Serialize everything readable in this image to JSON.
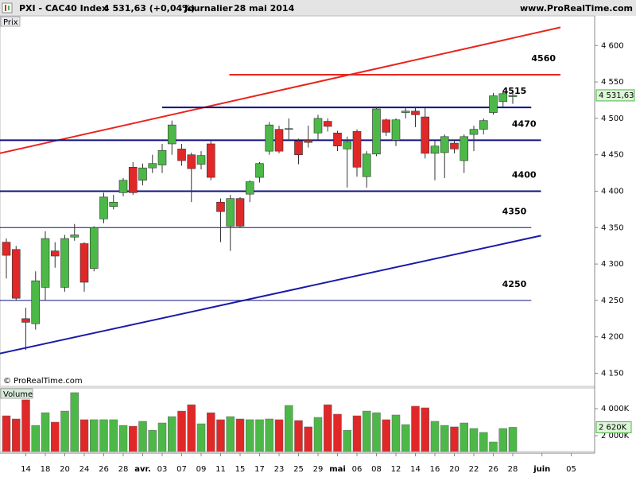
{
  "chart_data": {
    "type": "candlestick",
    "title": "PXI - CAC40 Index",
    "price_summary": "4 531,63 (+0,04%)",
    "period": "Journalier",
    "date": "28 mai 2014",
    "website": "www.ProRealTime.com",
    "price_panel_label": "Prix",
    "volume_panel_label": "Volume",
    "copyright": "© ProRealTime.com",
    "last_price_label": "4 531,63",
    "last_volume_label": "2 620K",
    "up_color": "#4cb848",
    "down_color": "#e02828",
    "categories": [
      null,
      null,
      "14",
      null,
      "18",
      null,
      "20",
      null,
      "24",
      null,
      "26",
      null,
      "28",
      null,
      "avr.",
      null,
      "03",
      null,
      "07",
      null,
      "09",
      null,
      "11",
      null,
      "15",
      null,
      "17",
      null,
      "23",
      null,
      "25",
      null,
      "29",
      null,
      "mai",
      null,
      "06",
      null,
      "08",
      null,
      "12",
      null,
      "14",
      null,
      "16",
      null,
      "20",
      null,
      "22",
      null,
      "26",
      null,
      "28",
      null,
      null,
      "juin",
      null,
      null,
      "05"
    ],
    "open": [
      4330,
      4320,
      4225,
      4218,
      4268,
      4318,
      4268,
      4337,
      4328,
      4294,
      4362,
      4379,
      4398,
      4433,
      4415,
      4432,
      4436,
      4465,
      4458,
      4450,
      4437,
      4465,
      4385,
      4352,
      4390,
      4396,
      4419,
      4455,
      4485,
      4485,
      4469,
      4470,
      4480,
      4496,
      4480,
      4458,
      4482,
      4420,
      4451,
      4498,
      4470,
      4508,
      4510,
      4502,
      4452,
      4453,
      4466,
      4442,
      4478,
      4485,
      4508,
      4523,
      4529.9,
      null,
      null,
      null,
      null,
      null,
      null
    ],
    "high": [
      4335,
      4325,
      4240,
      4290,
      4345,
      4330,
      4340,
      4355,
      4330,
      4352,
      4398,
      4395,
      4418,
      4440,
      4438,
      4450,
      4465,
      4497,
      4465,
      4453,
      4455,
      4470,
      4390,
      4395,
      4392,
      4415,
      4440,
      4495,
      4490,
      4500,
      4472,
      4490,
      4505,
      4500,
      4483,
      4475,
      4485,
      4455,
      4515,
      4500,
      4500,
      4515,
      4515,
      4515,
      4470,
      4478,
      4470,
      4478,
      4490,
      4500,
      4535,
      4538,
      4536,
      null,
      null,
      null,
      null,
      null,
      null
    ],
    "low": [
      4280,
      4250,
      4182,
      4210,
      4250,
      4295,
      4262,
      4332,
      4262,
      4290,
      4356,
      4375,
      4393,
      4395,
      4408,
      4425,
      4425,
      4450,
      4435,
      4385,
      4430,
      4415,
      4330,
      4318,
      4350,
      4385,
      4412,
      4450,
      4452,
      4470,
      4437,
      4460,
      4470,
      4482,
      4455,
      4405,
      4420,
      4405,
      4448,
      4476,
      4462,
      4500,
      4488,
      4445,
      4415,
      4418,
      4452,
      4425,
      4455,
      4478,
      4505,
      4516,
      4520,
      null,
      null,
      null,
      null,
      null,
      null
    ],
    "close": [
      4312,
      4253,
      4220,
      4277,
      4335,
      4311,
      4335,
      4340,
      4275,
      4350,
      4392,
      4385,
      4415,
      4398,
      4432,
      4438,
      4456,
      4491,
      4442,
      4431,
      4449,
      4419,
      4372,
      4390,
      4352,
      4413,
      4438,
      4491,
      4455,
      4486,
      4450,
      4467,
      4500,
      4489,
      4462,
      4468,
      4433,
      4451,
      4513,
      4481,
      4498,
      4510,
      4505,
      4452,
      4462,
      4475,
      4458,
      4475,
      4485,
      4497,
      4531,
      4534,
      4531.63,
      null,
      null,
      null,
      null,
      null,
      null
    ],
    "volume": [
      3470000,
      3235000,
      4650000,
      2760000,
      3700000,
      3000000,
      3820000,
      5180000,
      3180000,
      3180000,
      3180000,
      3180000,
      2760000,
      2700000,
      3060000,
      2400000,
      2940000,
      3410000,
      3820000,
      4290000,
      2880000,
      3700000,
      3180000,
      3410000,
      3235000,
      3180000,
      3180000,
      3235000,
      3180000,
      4235000,
      3120000,
      2650000,
      3350000,
      4290000,
      3590000,
      2400000,
      3470000,
      3820000,
      3700000,
      3180000,
      3530000,
      2820000,
      4180000,
      4060000,
      3060000,
      2760000,
      2650000,
      2940000,
      2530000,
      2240000,
      1530000,
      2530000,
      2620000,
      null,
      null,
      null,
      null,
      null,
      null
    ],
    "ylim": [
      4132,
      4632
    ],
    "yticks": [
      {
        "value": 4150,
        "label": "4 150"
      },
      {
        "value": 4200,
        "label": "4 200"
      },
      {
        "value": 4250,
        "label": "4 250"
      },
      {
        "value": 4300,
        "label": "4 300"
      },
      {
        "value": 4350,
        "label": "4 350"
      },
      {
        "value": 4400,
        "label": "4 400"
      },
      {
        "value": 4450,
        "label": "4 450"
      },
      {
        "value": 4500,
        "label": "4 500"
      },
      {
        "value": 4550,
        "label": "4 550"
      },
      {
        "value": 4600,
        "label": "4 600"
      }
    ],
    "volume_ylim": [
      824000,
      5529000
    ],
    "volume_yticks": [
      {
        "value": 2000000,
        "label": "2 000K"
      },
      {
        "value": 4000000,
        "label": "4 000K"
      }
    ],
    "levels": [
      {
        "value": 4560,
        "label": "4560",
        "color": "#e8261e",
        "start": 22.9,
        "end": 56.9
      },
      {
        "value": 4515,
        "label": "4515",
        "color": "#101080",
        "start": 16,
        "end": 53.9
      },
      {
        "value": 4470,
        "label": "4470",
        "color": "#101080",
        "start": -0.7,
        "end": 54.9
      },
      {
        "value": 4400,
        "label": "4400",
        "color": "#101080",
        "start": -0.7,
        "end": 54.9
      },
      {
        "value": 4350,
        "label": "4350",
        "color": "#101080",
        "start": -0.7,
        "end": 53.9
      },
      {
        "value": 4250,
        "label": "4250",
        "color": "#101080",
        "start": -0.7,
        "end": 53.9
      }
    ],
    "trendlines": [
      {
        "color": "#e8261e",
        "x": [
          -0.7,
          56.9
        ],
        "y": [
          4452,
          4625
        ]
      },
      {
        "color": "#1a1aa8",
        "x": [
          -0.7,
          54.9
        ],
        "y": [
          4177,
          4339
        ]
      }
    ]
  }
}
